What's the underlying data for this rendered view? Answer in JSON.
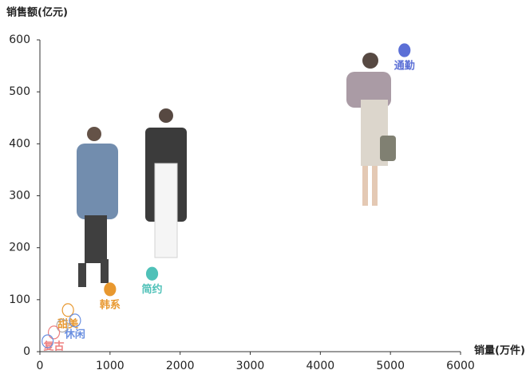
{
  "chart_data": {
    "type": "scatter",
    "y_label": "销售额(亿元)",
    "x_label": "销量(万件)",
    "xlim": [
      0,
      6000
    ],
    "xticks": [
      0,
      1000,
      2000,
      3000,
      4000,
      5000,
      6000
    ],
    "ylim": [
      0,
      600
    ],
    "yticks": [
      0,
      100,
      200,
      300,
      400,
      500,
      600
    ],
    "points": [
      {
        "label": "通勤",
        "color": "#5b6fd6",
        "filled": true,
        "x": 5200,
        "y": 580
      },
      {
        "label": "简约",
        "color": "#4fc1b8",
        "filled": true,
        "x": 1600,
        "y": 150
      },
      {
        "label": "韩系",
        "color": "#e8982f",
        "filled": true,
        "x": 1000,
        "y": 120
      },
      {
        "label": "甜美",
        "color": "#e8982f",
        "filled": false,
        "x": 400,
        "y": 80
      },
      {
        "label": "休闲",
        "color": "#6a8fe0",
        "filled": false,
        "x": 500,
        "y": 60
      },
      {
        "label": null,
        "color": "#aaaaaa",
        "filled": false,
        "x": 320,
        "y": 50
      },
      {
        "label": "复古",
        "color": "#ee8080",
        "filled": false,
        "x": 200,
        "y": 37
      },
      {
        "label": null,
        "color": "#6a8fe0",
        "filled": false,
        "x": 110,
        "y": 20
      }
    ]
  }
}
